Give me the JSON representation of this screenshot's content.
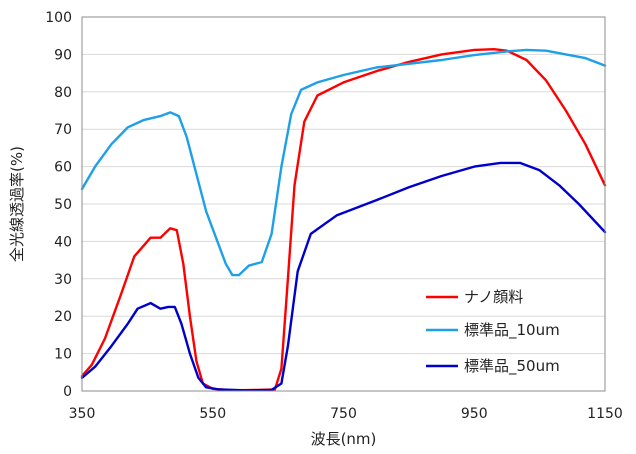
{
  "chart_data": {
    "type": "line",
    "xlabel": "波長(nm)",
    "ylabel": "全光線透過率(%)",
    "xlim": [
      350,
      1150
    ],
    "ylim": [
      0,
      100
    ],
    "x_ticks": [
      350,
      550,
      750,
      950,
      1150
    ],
    "y_ticks": [
      0,
      10,
      20,
      30,
      40,
      50,
      60,
      70,
      80,
      90,
      100
    ],
    "grid": "horizontal",
    "legend_position": "bottom-right",
    "series": [
      {
        "name": "ナノ顔料",
        "color": "#ff0000",
        "points": [
          [
            350,
            4
          ],
          [
            365,
            7
          ],
          [
            385,
            14
          ],
          [
            410,
            26
          ],
          [
            430,
            36
          ],
          [
            455,
            41
          ],
          [
            470,
            41
          ],
          [
            485,
            43.5
          ],
          [
            495,
            43
          ],
          [
            505,
            34
          ],
          [
            515,
            20
          ],
          [
            525,
            8
          ],
          [
            535,
            2
          ],
          [
            550,
            0.6
          ],
          [
            580,
            0.2
          ],
          [
            620,
            0.3
          ],
          [
            645,
            0.4
          ],
          [
            655,
            6
          ],
          [
            665,
            30
          ],
          [
            675,
            55
          ],
          [
            690,
            72
          ],
          [
            710,
            79
          ],
          [
            750,
            82.5
          ],
          [
            800,
            85.5
          ],
          [
            850,
            88
          ],
          [
            900,
            90
          ],
          [
            950,
            91.2
          ],
          [
            980,
            91.4
          ],
          [
            1000,
            91
          ],
          [
            1030,
            88.5
          ],
          [
            1060,
            83
          ],
          [
            1090,
            75
          ],
          [
            1120,
            66
          ],
          [
            1150,
            55
          ]
        ]
      },
      {
        "name": "標準品_10um",
        "color": "#1ea0e8",
        "points": [
          [
            350,
            54
          ],
          [
            370,
            60
          ],
          [
            395,
            66
          ],
          [
            420,
            70.5
          ],
          [
            445,
            72.5
          ],
          [
            470,
            73.5
          ],
          [
            485,
            74.5
          ],
          [
            498,
            73.5
          ],
          [
            510,
            68
          ],
          [
            525,
            58
          ],
          [
            540,
            48
          ],
          [
            555,
            41
          ],
          [
            570,
            34
          ],
          [
            580,
            31
          ],
          [
            590,
            31
          ],
          [
            605,
            33.5
          ],
          [
            625,
            34.5
          ],
          [
            640,
            42
          ],
          [
            655,
            60
          ],
          [
            670,
            74
          ],
          [
            685,
            80.5
          ],
          [
            710,
            82.5
          ],
          [
            750,
            84.5
          ],
          [
            800,
            86.5
          ],
          [
            850,
            87.5
          ],
          [
            900,
            88.5
          ],
          [
            950,
            89.8
          ],
          [
            1000,
            90.8
          ],
          [
            1030,
            91.2
          ],
          [
            1060,
            91
          ],
          [
            1090,
            90
          ],
          [
            1120,
            89
          ],
          [
            1150,
            87
          ]
        ]
      },
      {
        "name": "標準品_50um",
        "color": "#0000cc",
        "points": [
          [
            350,
            3.5
          ],
          [
            370,
            6.5
          ],
          [
            395,
            12
          ],
          [
            420,
            18
          ],
          [
            435,
            22
          ],
          [
            455,
            23.5
          ],
          [
            470,
            22
          ],
          [
            482,
            22.5
          ],
          [
            492,
            22.5
          ],
          [
            502,
            18
          ],
          [
            515,
            10
          ],
          [
            528,
            3.5
          ],
          [
            540,
            1
          ],
          [
            560,
            0.4
          ],
          [
            600,
            0.2
          ],
          [
            640,
            0.3
          ],
          [
            655,
            2
          ],
          [
            665,
            12
          ],
          [
            680,
            32
          ],
          [
            700,
            42
          ],
          [
            740,
            47
          ],
          [
            800,
            51
          ],
          [
            850,
            54.5
          ],
          [
            900,
            57.5
          ],
          [
            950,
            60
          ],
          [
            990,
            61
          ],
          [
            1020,
            61
          ],
          [
            1050,
            59
          ],
          [
            1080,
            55
          ],
          [
            1110,
            50
          ],
          [
            1150,
            42.5
          ]
        ]
      }
    ]
  }
}
